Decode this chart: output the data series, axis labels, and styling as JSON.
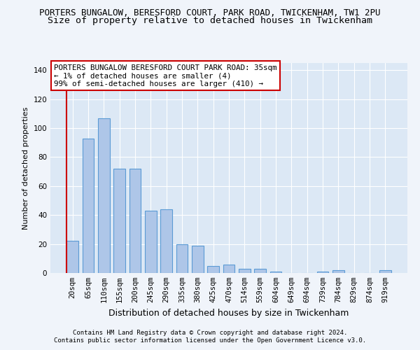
{
  "title1": "PORTERS BUNGALOW, BERESFORD COURT, PARK ROAD, TWICKENHAM, TW1 2PU",
  "title2": "Size of property relative to detached houses in Twickenham",
  "xlabel": "Distribution of detached houses by size in Twickenham",
  "ylabel": "Number of detached properties",
  "categories": [
    "20sqm",
    "65sqm",
    "110sqm",
    "155sqm",
    "200sqm",
    "245sqm",
    "290sqm",
    "335sqm",
    "380sqm",
    "425sqm",
    "470sqm",
    "514sqm",
    "559sqm",
    "604sqm",
    "649sqm",
    "694sqm",
    "739sqm",
    "784sqm",
    "829sqm",
    "874sqm",
    "919sqm"
  ],
  "values": [
    22,
    93,
    107,
    72,
    72,
    43,
    44,
    20,
    19,
    5,
    6,
    3,
    3,
    1,
    0,
    0,
    1,
    2,
    0,
    0,
    2
  ],
  "bar_color": "#aec6e8",
  "bar_edgecolor": "#5b9bd5",
  "highlight_color": "#cc0000",
  "annotation_box_text": "PORTERS BUNGALOW BERESFORD COURT PARK ROAD: 35sqm\n← 1% of detached houses are smaller (4)\n99% of semi-detached houses are larger (410) →",
  "annotation_box_color": "#cc0000",
  "ylim": [
    0,
    145
  ],
  "yticks": [
    0,
    20,
    40,
    60,
    80,
    100,
    120,
    140
  ],
  "footer1": "Contains HM Land Registry data © Crown copyright and database right 2024.",
  "footer2": "Contains public sector information licensed under the Open Government Licence v3.0.",
  "bg_color": "#dce8f5",
  "fig_bg_color": "#f0f4fa",
  "grid_color": "#ffffff",
  "title1_fontsize": 9,
  "title2_fontsize": 9.5,
  "bar_width": 0.75,
  "annotation_fontsize": 7.8,
  "ylabel_fontsize": 8,
  "xlabel_fontsize": 9,
  "tick_fontsize": 7.5,
  "footer_fontsize": 6.5
}
